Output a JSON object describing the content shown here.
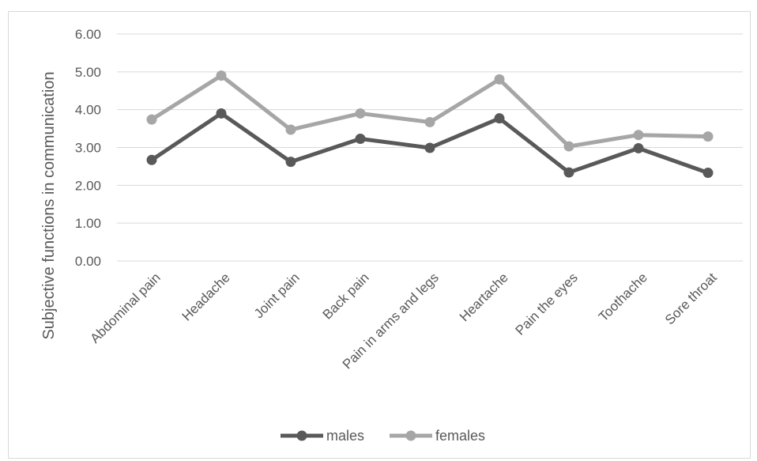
{
  "chart_data": {
    "type": "line",
    "title": "",
    "xlabel": "",
    "ylabel": "Subjective functions in communication",
    "ylim": [
      0,
      6
    ],
    "y_ticks": [
      "0.00",
      "1.00",
      "2.00",
      "3.00",
      "4.00",
      "5.00",
      "6.00"
    ],
    "grid": true,
    "legend_position": "bottom",
    "categories": [
      "Abdominal pain",
      "Headache",
      "Joint pain",
      "Back pain",
      "Pain in arms and legs",
      "Heartache",
      "Pain the eyes",
      "Toothache",
      "Sore throat"
    ],
    "series": [
      {
        "name": "males",
        "color": "#595959",
        "values": [
          2.67,
          3.9,
          2.62,
          3.23,
          2.99,
          3.77,
          2.34,
          2.98,
          2.33
        ]
      },
      {
        "name": "females",
        "color": "#a6a6a6",
        "values": [
          3.74,
          4.9,
          3.47,
          3.9,
          3.67,
          4.8,
          3.03,
          3.33,
          3.29
        ]
      }
    ]
  }
}
